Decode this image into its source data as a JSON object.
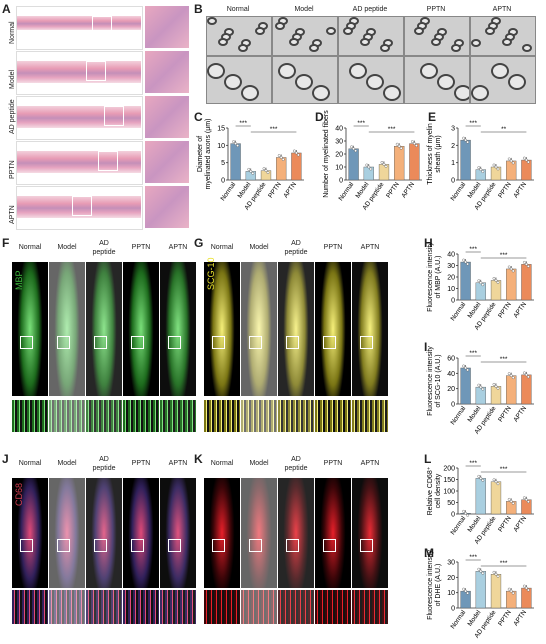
{
  "colors": {
    "normal": "#6f97b8",
    "model": "#a9cfe0",
    "ad": "#efd69a",
    "pptn": "#f4b07a",
    "aptn": "#eb8a5a",
    "mbp": "#3dbb3d",
    "scg": "#e8e02c",
    "cd68": "#d23c50",
    "dhe": "#e8202a"
  },
  "panels": {
    "A": "A",
    "B": "B",
    "C": "C",
    "D": "D",
    "E": "E",
    "F": "F",
    "G": "G",
    "H": "H",
    "I": "I",
    "J": "J",
    "K": "K",
    "L": "L",
    "M": "M"
  },
  "groups": [
    "Normal",
    "Model",
    "AD peptide",
    "PPTN",
    "APTN"
  ],
  "group_header_ad_1": "AD",
  "group_header_ad_2": "peptide",
  "stains": {
    "mbp": "MBP",
    "scg": "SCG-10",
    "cd68": "CD68"
  },
  "sig": {
    "three": "***",
    "two": "**"
  },
  "chart_data": [
    {
      "id": "C",
      "type": "bar",
      "categories": [
        "Normal",
        "Model",
        "AD peptide",
        "PPTN",
        "APTN"
      ],
      "values": [
        10.5,
        2.5,
        2.7,
        6.5,
        7.8
      ],
      "ylabel": "Diameter of myelinated axons (μm)",
      "ylabel_1": "Diameter of",
      "ylabel_2": "myelinated axons (μm)",
      "ylim": [
        0,
        15
      ],
      "yticks": [
        "0",
        "5",
        "10",
        "15"
      ]
    },
    {
      "id": "D",
      "type": "bar",
      "categories": [
        "Normal",
        "Model",
        "AD peptide",
        "PPTN",
        "APTN"
      ],
      "values": [
        24,
        10,
        12,
        26,
        28
      ],
      "ylabel": "Number of myelinated fibers",
      "ylim": [
        0,
        40
      ],
      "yticks": [
        "0",
        "10",
        "20",
        "30",
        "40"
      ]
    },
    {
      "id": "E",
      "type": "bar",
      "categories": [
        "Normal",
        "Model",
        "AD peptide",
        "PPTN",
        "APTN"
      ],
      "values": [
        2.3,
        0.6,
        0.75,
        1.1,
        1.15
      ],
      "ylabel": "Thickness of myelin sheath (μm)",
      "ylabel_1": "Thickness of myelin",
      "ylabel_2": "sheath (μm)",
      "ylim": [
        0,
        3
      ],
      "yticks": [
        "0",
        "1",
        "2",
        "3"
      ]
    },
    {
      "id": "H",
      "type": "bar",
      "categories": [
        "Normal",
        "Model",
        "AD peptide",
        "PPTN",
        "APTN"
      ],
      "values": [
        33,
        15,
        17,
        27,
        31
      ],
      "ylabel": "Fluorescence intensity of MBP (A.U.)",
      "ylabel_1": "Fluorescence intensity",
      "ylabel_2": "of MBP (A.U.)",
      "ylim": [
        0,
        40
      ],
      "yticks": [
        "0",
        "10",
        "20",
        "30",
        "40"
      ]
    },
    {
      "id": "I",
      "type": "bar",
      "categories": [
        "Normal",
        "Model",
        "AD peptide",
        "PPTN",
        "APTN"
      ],
      "values": [
        47,
        22,
        23,
        37,
        38
      ],
      "ylabel": "Fluorescence intensity of SCG-10 (A.U.)",
      "ylabel_1": "Fluorescence intensity",
      "ylabel_2": "of SCG-10 (A.U.)",
      "ylim": [
        0,
        60
      ],
      "yticks": [
        "0",
        "20",
        "40",
        "60"
      ]
    },
    {
      "id": "L",
      "type": "bar",
      "categories": [
        "Normal",
        "Model",
        "AD peptide",
        "PPTN",
        "APTN"
      ],
      "values": [
        3,
        155,
        140,
        55,
        62
      ],
      "ylabel": "Relative CD68+ cell density",
      "ylabel_1": "Relative CD68⁺",
      "ylabel_2": "cell density",
      "ylim": [
        0,
        200
      ],
      "yticks": [
        "0",
        "50",
        "100",
        "150",
        "200"
      ]
    },
    {
      "id": "M",
      "type": "bar",
      "categories": [
        "Normal",
        "Model",
        "AD peptide",
        "PPTN",
        "APTN"
      ],
      "values": [
        11,
        24,
        22,
        11,
        13
      ],
      "ylabel": "Fluorescence intensity of DHE (A.U.)",
      "ylabel_1": "Fluorescence intensity",
      "ylabel_2": "of DHE (A.U.)",
      "ylim": [
        0,
        30
      ],
      "yticks": [
        "0",
        "10",
        "20",
        "30"
      ]
    }
  ]
}
